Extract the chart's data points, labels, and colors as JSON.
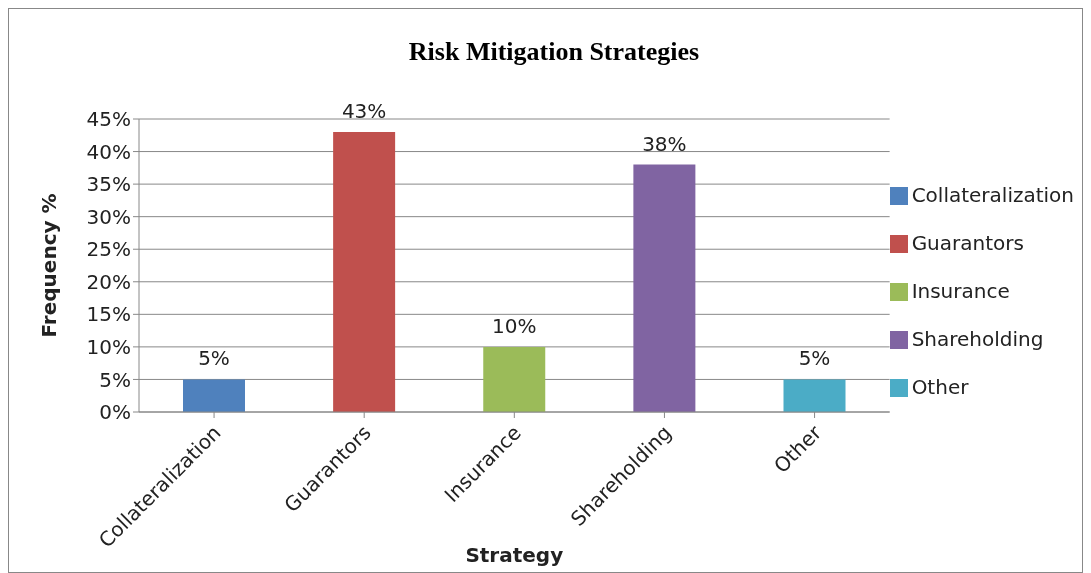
{
  "chart_data": {
    "type": "bar",
    "title": "Risk Mitigation Strategies",
    "xlabel": "Strategy",
    "ylabel": "Frequency %",
    "categories": [
      "Collateralization",
      "Guarantors",
      "Insurance",
      "Shareholding",
      "Other"
    ],
    "stacked": true,
    "series": [
      {
        "name": "Collateralization",
        "color": "#4f81bd",
        "values": [
          5,
          null,
          null,
          null,
          null
        ],
        "value_labels": [
          "5%",
          null,
          null,
          null,
          null
        ]
      },
      {
        "name": "Guarantors",
        "color": "#c0504d",
        "values": [
          null,
          43,
          null,
          null,
          null
        ],
        "value_labels": [
          null,
          "43%",
          null,
          null,
          null
        ]
      },
      {
        "name": "Insurance",
        "color": "#9bbb59",
        "values": [
          null,
          null,
          10,
          null,
          null
        ],
        "value_labels": [
          null,
          null,
          "10%",
          null,
          null
        ]
      },
      {
        "name": "Shareholding",
        "color": "#8064a2",
        "values": [
          null,
          null,
          null,
          38,
          null
        ],
        "value_labels": [
          null,
          null,
          null,
          "38%",
          null
        ]
      },
      {
        "name": "Other",
        "color": "#4bacc6",
        "values": [
          null,
          null,
          null,
          null,
          5
        ],
        "value_labels": [
          null,
          null,
          null,
          null,
          "5%"
        ]
      }
    ],
    "ylim": [
      0,
      45
    ],
    "yticks": [
      {
        "value": 0,
        "label": "0%"
      },
      {
        "value": 5,
        "label": "5%"
      },
      {
        "value": 10,
        "label": "10%"
      },
      {
        "value": 15,
        "label": "15%"
      },
      {
        "value": 20,
        "label": "20%"
      },
      {
        "value": 25,
        "label": "25%"
      },
      {
        "value": 30,
        "label": "30%"
      },
      {
        "value": 35,
        "label": "35%"
      },
      {
        "value": 40,
        "label": "40%"
      },
      {
        "value": 45,
        "label": "45%"
      }
    ],
    "grid": "y",
    "legend": "right"
  }
}
